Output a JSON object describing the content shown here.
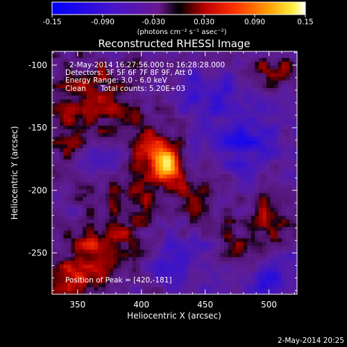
{
  "chart_data": {
    "type": "heatmap",
    "title": "Reconstructed RHESSI Image",
    "xlabel": "Heliocentric X (arcsec)",
    "ylabel": "Heliocentric Y (arcsec)",
    "xlim": [
      330,
      522
    ],
    "ylim": [
      -283,
      -89
    ],
    "xticks": [
      350,
      400,
      450,
      500
    ],
    "yticks": [
      -100,
      -150,
      -200,
      -250
    ],
    "colorbar": {
      "range": [
        -0.15,
        0.15
      ],
      "ticks": [
        "-0.15",
        "-0.090",
        "-0.030",
        "0.030",
        "0.090",
        "0.15"
      ],
      "units_label": "(photons cm⁻² s⁻¹ asec⁻²)",
      "colormap": "blue-purple-red-yellow-white"
    },
    "annotations": {
      "time_range": "2-May-2014 16:27:56.000 to 16:28:28.000",
      "detectors": "Detectors: 3F 5F 6F 7F 8F 9F, Att 0",
      "energy": "Energy Range: 3.0 - 6.0 keV",
      "method": "Clean",
      "total_counts": "Total counts: 5.20E+03",
      "peak": "Position of Peak = [420,-181]"
    },
    "peak_position": [
      420,
      -181
    ],
    "features": [
      {
        "x": 420,
        "y": -181,
        "value": 0.15,
        "sx": 8,
        "sy": 8
      },
      {
        "x": 410,
        "y": -168,
        "value": 0.09,
        "sx": 12,
        "sy": 10
      },
      {
        "x": 395,
        "y": -205,
        "value": 0.055,
        "sx": 18,
        "sy": 14
      },
      {
        "x": 445,
        "y": -200,
        "value": 0.05,
        "sx": 14,
        "sy": 12
      },
      {
        "x": 375,
        "y": -245,
        "value": 0.07,
        "sx": 20,
        "sy": 14
      },
      {
        "x": 350,
        "y": -270,
        "value": 0.06,
        "sx": 18,
        "sy": 12
      },
      {
        "x": 345,
        "y": -150,
        "value": 0.05,
        "sx": 14,
        "sy": 20
      },
      {
        "x": 360,
        "y": -115,
        "value": 0.045,
        "sx": 18,
        "sy": 12
      },
      {
        "x": 385,
        "y": -140,
        "value": 0.04,
        "sx": 18,
        "sy": 10
      },
      {
        "x": 500,
        "y": -105,
        "value": 0.05,
        "sx": 14,
        "sy": 8
      },
      {
        "x": 500,
        "y": -225,
        "value": 0.045,
        "sx": 10,
        "sy": 16
      },
      {
        "x": 470,
        "y": -245,
        "value": 0.04,
        "sx": 12,
        "sy": 12
      },
      {
        "x": 455,
        "y": -120,
        "value": -0.06,
        "sx": 18,
        "sy": 14
      },
      {
        "x": 480,
        "y": -160,
        "value": -0.07,
        "sx": 20,
        "sy": 18
      },
      {
        "x": 430,
        "y": -255,
        "value": -0.05,
        "sx": 22,
        "sy": 14
      },
      {
        "x": 500,
        "y": -270,
        "value": -0.05,
        "sx": 16,
        "sy": 12
      },
      {
        "x": 370,
        "y": -175,
        "value": -0.04,
        "sx": 14,
        "sy": 12
      }
    ]
  },
  "footer": {
    "date": "2-May-2014 20:25"
  }
}
